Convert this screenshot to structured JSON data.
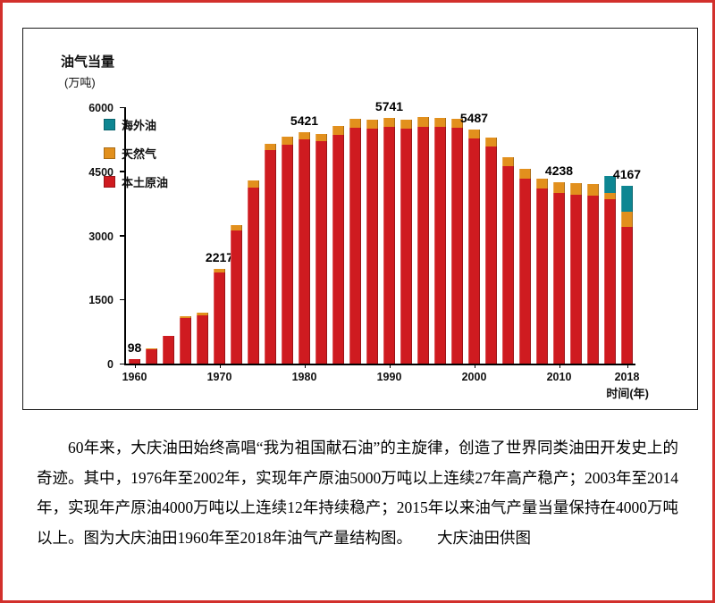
{
  "chart": {
    "y_axis_title": "油气当量",
    "y_axis_unit": "(万吨)",
    "x_axis_title": "时间(年)",
    "legend": [
      {
        "label": "海外油",
        "color": "#0e8692"
      },
      {
        "label": "天然气",
        "color": "#e2901d"
      },
      {
        "label": "本土原油",
        "color": "#cf1b20"
      }
    ]
  },
  "chart_data": {
    "type": "bar",
    "stacked": true,
    "title": "大庆油田1960年至2018年油气产量结构图",
    "ylabel": "油气当量(万吨)",
    "xlabel": "时间(年)",
    "ylim": [
      0,
      6000
    ],
    "yticks": [
      0,
      1500,
      3000,
      4500,
      6000
    ],
    "xticks": [
      1960,
      1970,
      1980,
      1990,
      2000,
      2010,
      2018
    ],
    "categories": [
      1960,
      1962,
      1964,
      1966,
      1968,
      1970,
      1972,
      1974,
      1976,
      1978,
      1980,
      1982,
      1984,
      1986,
      1988,
      1990,
      1992,
      1994,
      1996,
      1998,
      2000,
      2002,
      2004,
      2006,
      2008,
      2010,
      2012,
      2014,
      2016,
      2018
    ],
    "series": [
      {
        "name": "本土原油",
        "key": "crude",
        "color": "#cf1b20",
        "values": [
          97,
          345,
          640,
          1060,
          1130,
          2130,
          3120,
          4120,
          5000,
          5120,
          5250,
          5200,
          5360,
          5520,
          5500,
          5530,
          5500,
          5550,
          5540,
          5520,
          5270,
          5080,
          4620,
          4330,
          4090,
          3990,
          3960,
          3930,
          3850,
          3204
        ]
      },
      {
        "name": "天然气",
        "key": "gas",
        "color": "#e2901d",
        "values": [
          1,
          5,
          10,
          40,
          60,
          87,
          130,
          160,
          150,
          180,
          171,
          180,
          200,
          200,
          210,
          211,
          210,
          215,
          215,
          210,
          217,
          220,
          220,
          230,
          240,
          248,
          260,
          280,
          150,
          346
        ]
      },
      {
        "name": "海外油",
        "key": "overseas",
        "color": "#0e8692",
        "values": [
          0,
          0,
          0,
          0,
          0,
          0,
          0,
          0,
          0,
          0,
          0,
          0,
          0,
          0,
          0,
          0,
          0,
          0,
          0,
          0,
          0,
          0,
          0,
          0,
          0,
          0,
          0,
          0,
          400,
          617
        ]
      }
    ],
    "point_labels": {
      "0": "98",
      "5": "2217",
      "10": "5421",
      "15": "5741",
      "20": "5487",
      "25": "4238",
      "29": "4167"
    },
    "legend_position": "upper-left",
    "grid": false
  },
  "caption": {
    "text": "60年来，大庆油田始终高唱“我为祖国献石油”的主旋律，创造了世界同类油田开发史上的奇迹。其中，1976年至2002年，实现年产原油5000万吨以上连续27年高产稳产；2003年至2014年，实现年产原油4000万吨以上连续12年持续稳产；2015年以来油气产量当量保持在4000万吨以上。图为大庆油田1960年至2018年油气产量结构图。",
    "credit": "大庆油田供图"
  }
}
